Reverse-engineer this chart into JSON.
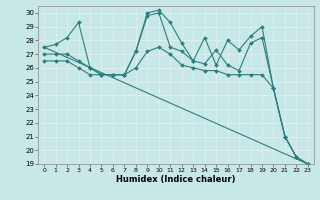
{
  "xlabel": "Humidex (Indice chaleur)",
  "xlim": [
    -0.5,
    23.5
  ],
  "ylim": [
    19,
    30.5
  ],
  "yticks": [
    19,
    20,
    21,
    22,
    23,
    24,
    25,
    26,
    27,
    28,
    29,
    30
  ],
  "xticks": [
    0,
    1,
    2,
    3,
    4,
    5,
    6,
    7,
    8,
    9,
    10,
    11,
    12,
    13,
    14,
    15,
    16,
    17,
    18,
    19,
    20,
    21,
    22,
    23
  ],
  "bg_color": "#c8e8e8",
  "line_color": "#2e7d7d",
  "grid_color": "#e0f0f0",
  "lines": [
    {
      "x": [
        0,
        1,
        2,
        3,
        4,
        5,
        6,
        7,
        8,
        9,
        10,
        11,
        12,
        13,
        14,
        15,
        16,
        17,
        18,
        19,
        20,
        21,
        22,
        23
      ],
      "y": [
        27.5,
        27.7,
        28.2,
        29.3,
        26.0,
        25.5,
        25.5,
        25.5,
        27.2,
        30.0,
        30.2,
        29.3,
        27.8,
        26.5,
        28.2,
        26.2,
        28.0,
        27.3,
        28.3,
        29.0,
        24.5,
        21.0,
        19.5,
        19.0
      ]
    },
    {
      "x": [
        0,
        1,
        2,
        3,
        4,
        5,
        6,
        7,
        8,
        9,
        10,
        11,
        12,
        13,
        14,
        15,
        16,
        17,
        18,
        19,
        20,
        21,
        22,
        23
      ],
      "y": [
        27.0,
        27.0,
        27.0,
        26.5,
        26.0,
        25.5,
        25.5,
        25.5,
        27.2,
        29.8,
        30.0,
        27.5,
        27.2,
        26.5,
        26.3,
        27.3,
        26.2,
        25.8,
        27.8,
        28.2,
        24.5,
        21.0,
        19.5,
        19.0
      ]
    },
    {
      "x": [
        0,
        1,
        2,
        3,
        4,
        5,
        6,
        7,
        8,
        9,
        10,
        11,
        12,
        13,
        14,
        15,
        16,
        17,
        18,
        19,
        20,
        21,
        22,
        23
      ],
      "y": [
        26.5,
        26.5,
        26.5,
        26.0,
        25.5,
        25.5,
        25.5,
        25.5,
        26.0,
        27.2,
        27.5,
        27.0,
        26.2,
        26.0,
        25.8,
        25.8,
        25.5,
        25.5,
        25.5,
        25.5,
        24.5,
        21.0,
        19.5,
        19.0
      ]
    },
    {
      "x": [
        0,
        23
      ],
      "y": [
        27.5,
        19.0
      ]
    }
  ]
}
